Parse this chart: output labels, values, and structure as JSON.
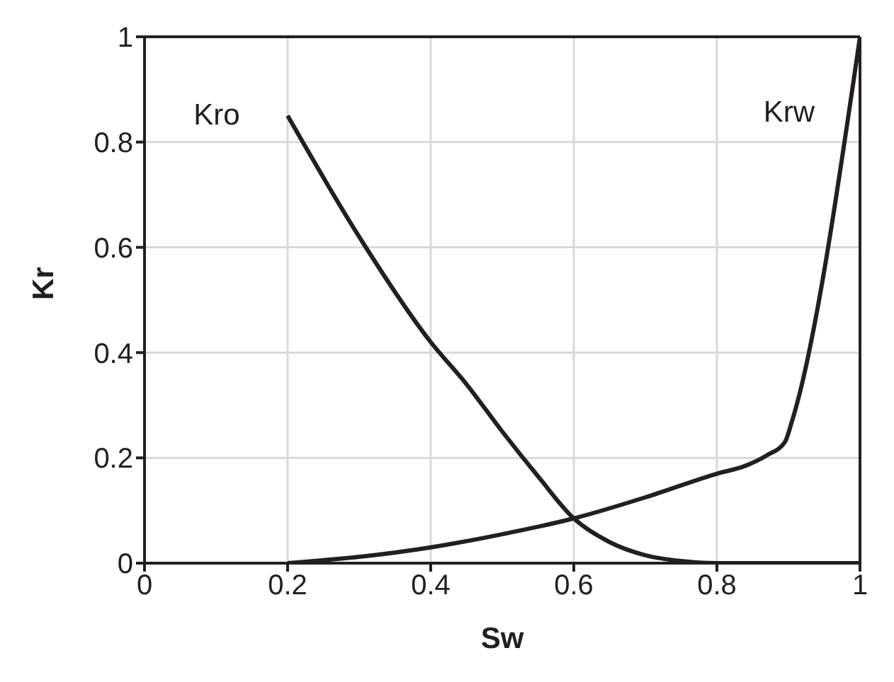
{
  "chart_data": {
    "type": "line",
    "xlabel": "Sw",
    "ylabel": "Kr",
    "xlim": [
      0,
      1
    ],
    "ylim": [
      0,
      1
    ],
    "xticks": [
      0,
      0.2,
      0.4,
      0.6,
      0.8,
      1
    ],
    "yticks": [
      0,
      0.2,
      0.4,
      0.6,
      0.8,
      1
    ],
    "grid": true,
    "legend": false,
    "marker": "none",
    "line_style": "solid",
    "series": [
      {
        "name": "Kro",
        "color": "#231f20",
        "x": [
          0.2,
          0.3,
          0.4,
          0.45,
          0.5,
          0.55,
          0.6,
          0.65,
          0.7,
          0.75,
          0.8,
          1
        ],
        "values": [
          0.85,
          0.62,
          0.42,
          0.34,
          0.25,
          0.165,
          0.085,
          0.04,
          0.015,
          0.004,
          0,
          0
        ]
      },
      {
        "name": "Krw",
        "color": "#231f20",
        "x": [
          0.2,
          0.3,
          0.4,
          0.5,
          0.6,
          0.7,
          0.8,
          0.84,
          0.87,
          0.895,
          0.905,
          1
        ],
        "values": [
          0,
          0.012,
          0.03,
          0.055,
          0.085,
          0.125,
          0.17,
          0.185,
          0.205,
          0.23,
          0.27,
          1
        ]
      }
    ]
  }
}
